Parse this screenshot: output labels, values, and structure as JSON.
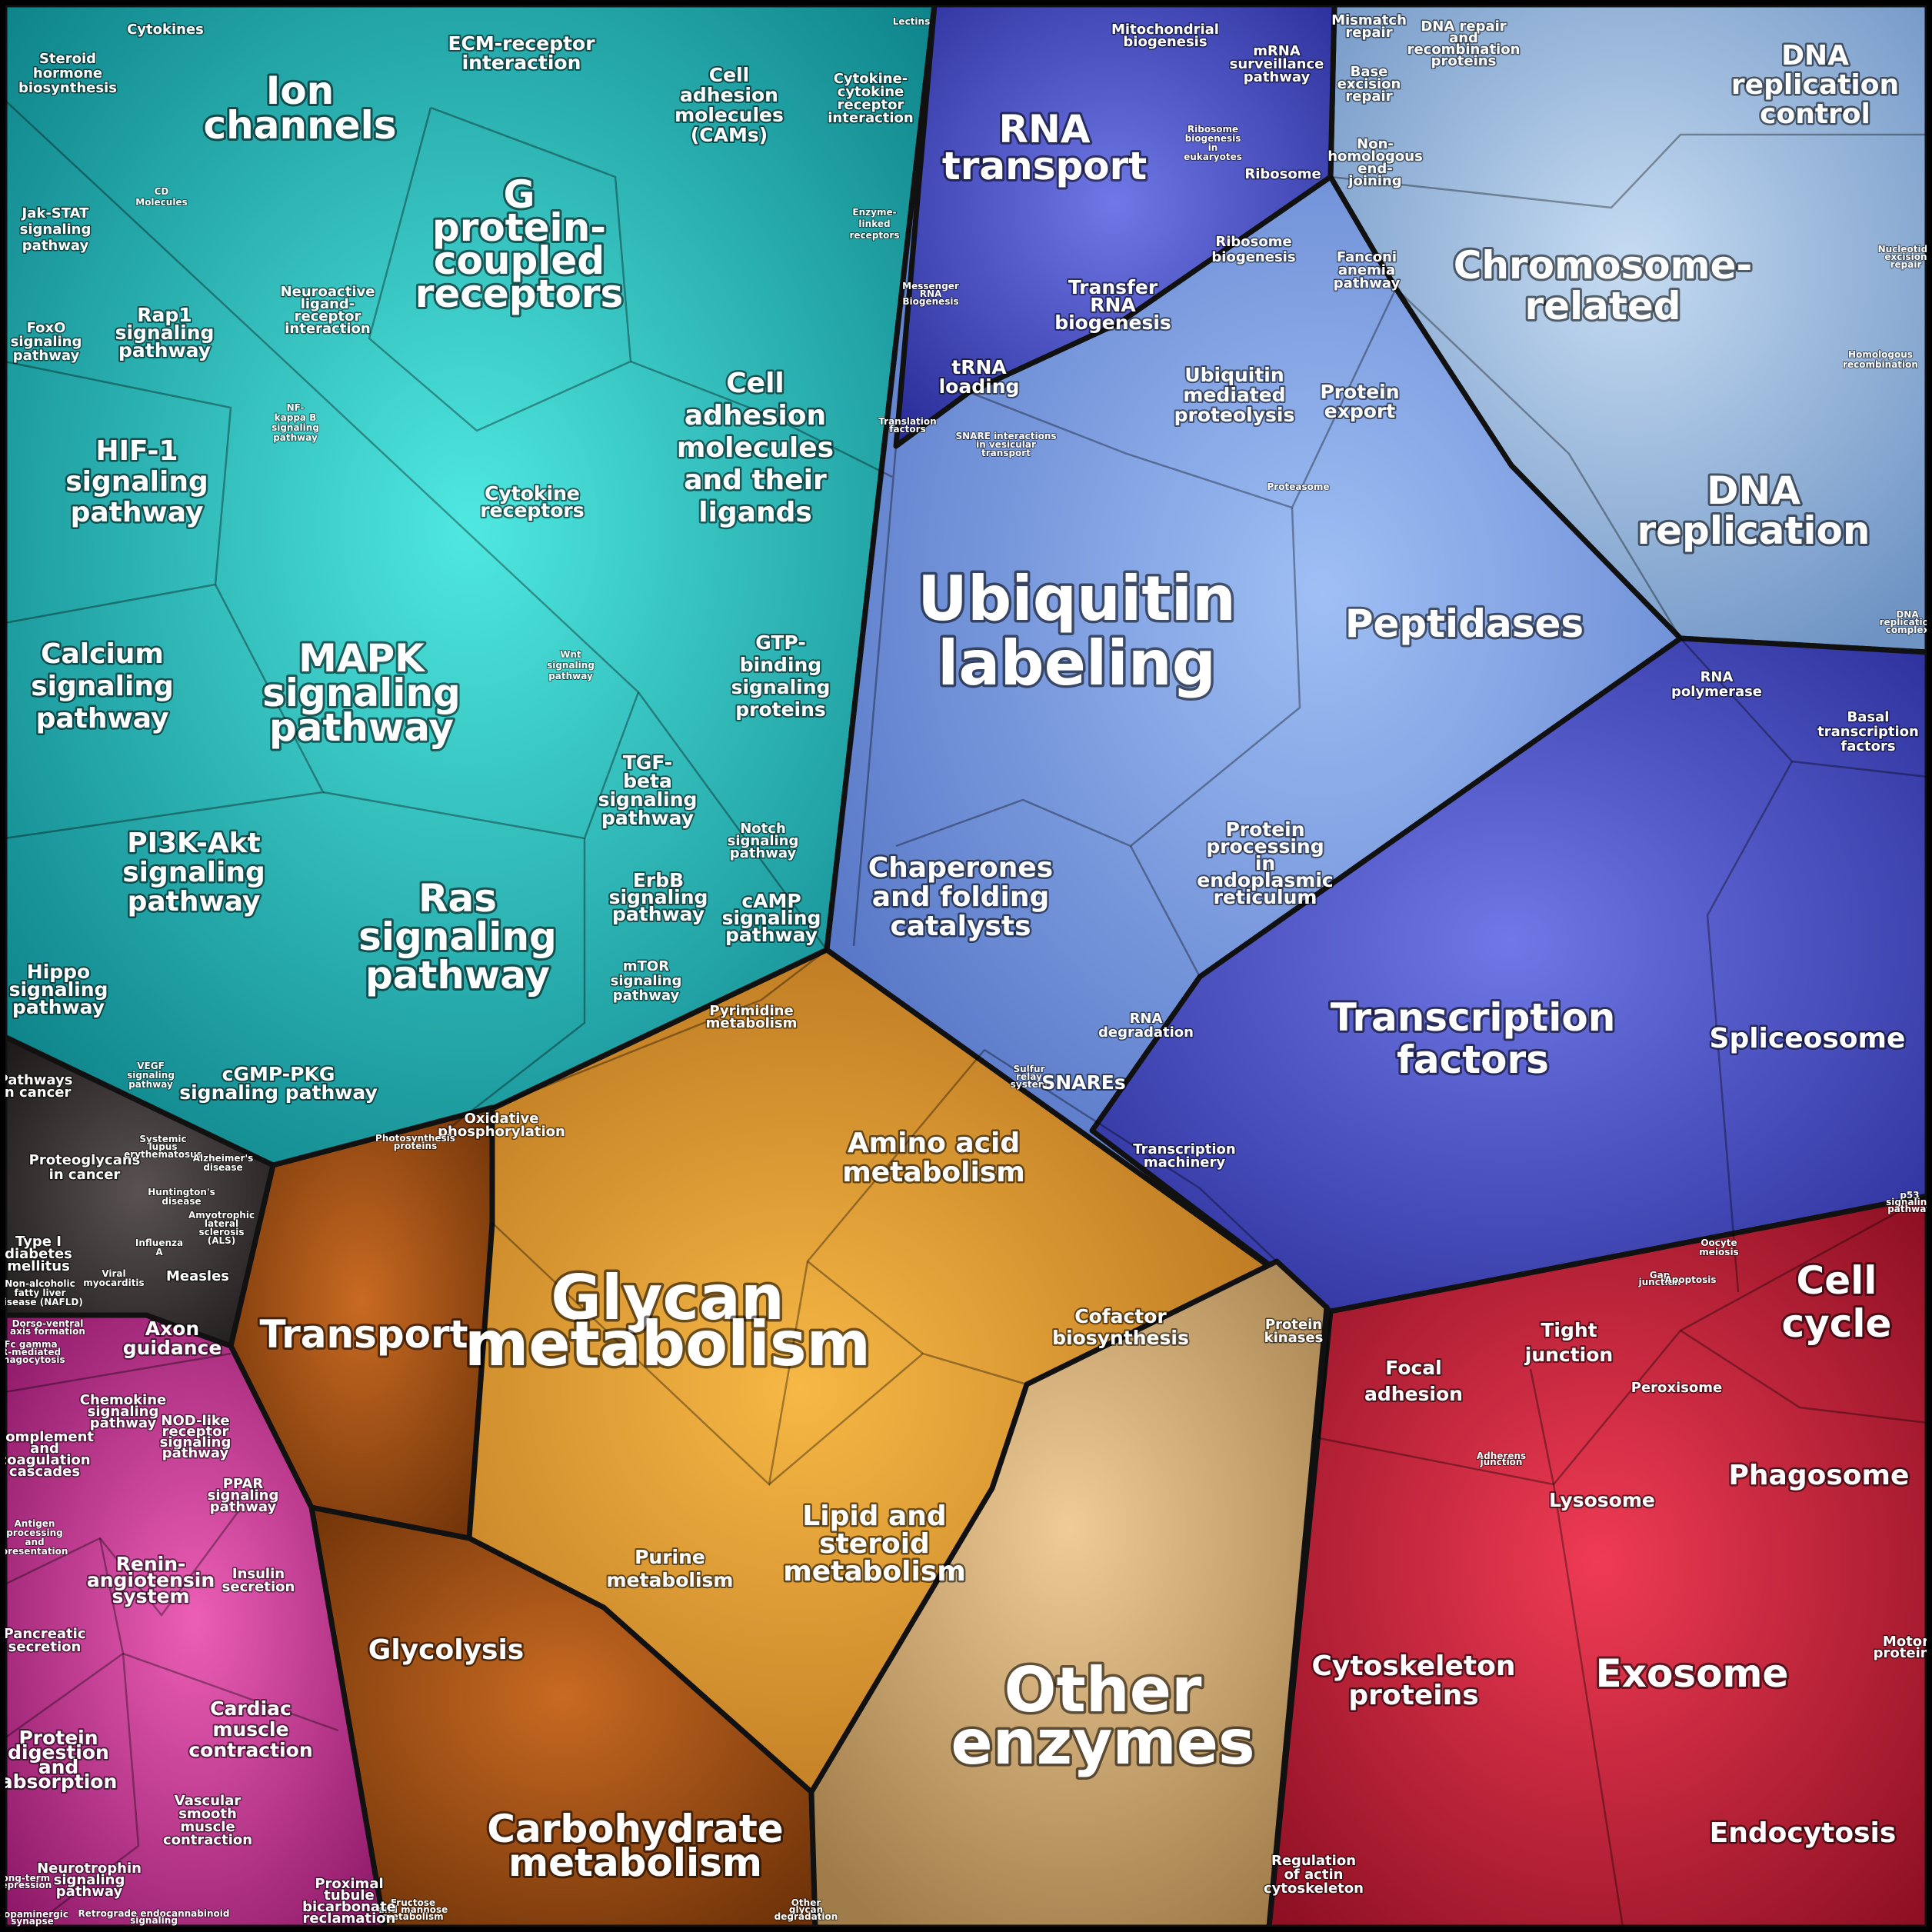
{
  "groups": {
    "signaling": "#1fb3b3",
    "genetic": "#6f8fe0",
    "metabolism": "#d98a2a",
    "cellular": "#c8283c",
    "disease": "#3a3434",
    "organismal": "#c0308f"
  },
  "labels": {
    "cytokines": [
      "Cytokines"
    ],
    "steroid": [
      "Steroid",
      "hormone",
      "biosynthesis"
    ],
    "ion": [
      "Ion",
      "channels"
    ],
    "ecm": [
      "ECM-receptor",
      "interaction"
    ],
    "cams": [
      "Cell",
      "adhesion",
      "molecules",
      "(CAMs)"
    ],
    "cyto_cyto": [
      "Cytokine-",
      "cytokine",
      "receptor",
      "interaction"
    ],
    "lectins": [
      "Lectins"
    ],
    "cd": [
      "CD",
      "Molecules"
    ],
    "jak": [
      "Jak-STAT",
      "signaling",
      "pathway"
    ],
    "gpcr": [
      "G",
      "protein-",
      "coupled",
      "receptors"
    ],
    "enzyme_linked": [
      "Enzyme-",
      "linked",
      "receptors"
    ],
    "neuroactive": [
      "Neuroactive",
      "ligand-",
      "receptor",
      "interaction"
    ],
    "rap1": [
      "Rap1",
      "signaling",
      "pathway"
    ],
    "foxo": [
      "FoxO",
      "signaling",
      "pathway"
    ],
    "nfkb": [
      "NF-",
      "kappa B",
      "signaling",
      "pathway"
    ],
    "cell_adhesion_lig": [
      "Cell",
      "adhesion",
      "molecules",
      "and their",
      "ligands"
    ],
    "hif1": [
      "HIF-1",
      "signaling",
      "pathway"
    ],
    "cytokine_rec": [
      "Cytokine",
      "receptors"
    ],
    "calcium": [
      "Calcium",
      "signaling",
      "pathway"
    ],
    "mapk": [
      "MAPK",
      "signaling",
      "pathway"
    ],
    "wnt": [
      "Wnt",
      "signaling",
      "pathway"
    ],
    "gtp": [
      "GTP-",
      "binding",
      "signaling",
      "proteins"
    ],
    "tgf": [
      "TGF-",
      "beta",
      "signaling",
      "pathway"
    ],
    "pi3k": [
      "PI3K-Akt",
      "signaling",
      "pathway"
    ],
    "notch": [
      "Notch",
      "signaling",
      "pathway"
    ],
    "ras": [
      "Ras",
      "signaling",
      "pathway"
    ],
    "erbb": [
      "ErbB",
      "signaling",
      "pathway"
    ],
    "camp": [
      "cAMP",
      "signaling",
      "pathway"
    ],
    "hippo": [
      "Hippo",
      "signaling",
      "pathway"
    ],
    "mtor": [
      "mTOR",
      "signaling",
      "pathway"
    ],
    "vegf": [
      "VEGF",
      "signaling",
      "pathway"
    ],
    "cgmp": [
      "cGMP-PKG",
      "signaling pathway"
    ],
    "pathways_cancer": [
      "Pathways",
      "in cancer"
    ],
    "proteoglycans": [
      "Proteoglycans",
      "in cancer"
    ],
    "sle": [
      "Systemic",
      "lupus",
      "erythematosus"
    ],
    "alzheimer": [
      "Alzheimer's",
      "disease"
    ],
    "huntington": [
      "Huntington's",
      "disease"
    ],
    "als": [
      "Amyotrophic",
      "lateral",
      "sclerosis",
      "(ALS)"
    ],
    "t1d": [
      "Type I",
      "diabetes",
      "mellitus"
    ],
    "influenza": [
      "Influenza",
      "A"
    ],
    "viral_myo": [
      "Viral",
      "myocarditis"
    ],
    "nafld": [
      "Non-alcoholic",
      "fatty liver",
      "disease (NAFLD)"
    ],
    "measles": [
      "Measles"
    ],
    "mito_bio": [
      "Mitochondrial",
      "biogenesis"
    ],
    "mrna_surv": [
      "mRNA",
      "surveillance",
      "pathway"
    ],
    "rna_transport": [
      "RNA",
      "transport"
    ],
    "ribo_bio_euk": [
      "Ribosome",
      "biogenesis",
      "in",
      "eukaryotes"
    ],
    "ribosome": [
      "Ribosome"
    ],
    "ribo_bio": [
      "Ribosome",
      "biogenesis"
    ],
    "messenger_rna": [
      "Messenger",
      "RNA",
      "Biogenesis"
    ],
    "transfer_rna": [
      "Transfer",
      "RNA",
      "biogenesis"
    ],
    "trna_loading": [
      "tRNA",
      "loading"
    ],
    "translation_factors": [
      "Translation",
      "factors"
    ],
    "snare_inter": [
      "SNARE interactions",
      "in vesicular",
      "transport"
    ],
    "ubi_mediated": [
      "Ubiquitin",
      "mediated",
      "proteolysis"
    ],
    "protein_export": [
      "Protein",
      "export"
    ],
    "proteasome": [
      "Proteasome"
    ],
    "ubiquitin_label": [
      "Ubiquitin",
      "labeling"
    ],
    "peptidases": [
      "Peptidases"
    ],
    "chaperones": [
      "Chaperones",
      "and folding",
      "catalysts"
    ],
    "protein_er": [
      "Protein",
      "processing",
      "in",
      "endoplasmic",
      "reticulum"
    ],
    "rna_degradation": [
      "RNA",
      "degradation"
    ],
    "sulfur_relay": [
      "Sulfur",
      "relay",
      "system"
    ],
    "snares": [
      "SNAREs"
    ],
    "mismatch": [
      "Mismatch",
      "repair"
    ],
    "dna_repair": [
      "DNA repair",
      "and",
      "recombination",
      "proteins"
    ],
    "dna_rep_ctrl": [
      "DNA",
      "replication",
      "control"
    ],
    "base_excision": [
      "Base",
      "excision",
      "repair"
    ],
    "nhej": [
      "Non-",
      "homologous",
      "end-",
      "joining"
    ],
    "chromosome": [
      "Chromosome-",
      "related"
    ],
    "fanconi": [
      "Fanconi",
      "anemia",
      "pathway"
    ],
    "nucleotide_exc": [
      "Nucleotide",
      "excision",
      "repair"
    ],
    "homologous": [
      "Homologous",
      "recombination"
    ],
    "dna_replication": [
      "DNA",
      "replication"
    ],
    "dna_rep_complex": [
      "DNA",
      "replication",
      "complex"
    ],
    "rna_polymerase": [
      "RNA",
      "polymerase"
    ],
    "basal_tf": [
      "Basal",
      "transcription",
      "factors"
    ],
    "transcription_factors": [
      "Transcription",
      "factors"
    ],
    "spliceosome": [
      "Spliceosome"
    ],
    "transcription_machinery": [
      "Transcription",
      "machinery"
    ],
    "pyrimidine": [
      "Pyrimidine",
      "metabolism"
    ],
    "oxphos": [
      "Oxidative",
      "phosphorylation"
    ],
    "photosynthesis": [
      "Photosynthesis",
      "proteins"
    ],
    "amino_acid": [
      "Amino acid",
      "metabolism"
    ],
    "transport": [
      "Transport"
    ],
    "glycan": [
      "Glycan",
      "metabolism"
    ],
    "cofactor": [
      "Cofactor",
      "biosynthesis"
    ],
    "protein_kinases": [
      "Protein",
      "kinases"
    ],
    "lipid": [
      "Lipid and",
      "steroid",
      "metabolism"
    ],
    "purine": [
      "Purine",
      "metabolism"
    ],
    "glycolysis": [
      "Glycolysis"
    ],
    "other_enzymes": [
      "Other",
      "enzymes"
    ],
    "carbohydrate": [
      "Carbohydrate",
      "metabolism"
    ],
    "fructose": [
      "Fructose",
      "and mannose",
      "metabolism"
    ],
    "other_glycan": [
      "Other",
      "glycan",
      "degradation"
    ],
    "axon": [
      "Axon",
      "guidance"
    ],
    "dorso": [
      "Dorso-ventral",
      "axis formation"
    ],
    "chemokine": [
      "Chemokine",
      "signaling",
      "pathway"
    ],
    "nod": [
      "NOD-like",
      "receptor",
      "signaling",
      "pathway"
    ],
    "complement": [
      "Complement",
      "and",
      "coagulation",
      "cascades"
    ],
    "fc_gamma": [
      "Fc gamma",
      "R-mediated",
      "phagocytosis"
    ],
    "ppar": [
      "PPAR",
      "signaling",
      "pathway"
    ],
    "antigen": [
      "Antigen",
      "processing",
      "and",
      "presentation"
    ],
    "renin": [
      "Renin-",
      "angiotensin",
      "system"
    ],
    "insulin": [
      "Insulin",
      "secretion"
    ],
    "pancreatic": [
      "Pancreatic",
      "secretion"
    ],
    "cardiac": [
      "Cardiac",
      "muscle",
      "contraction"
    ],
    "protein_digestion": [
      "Protein",
      "digestion",
      "and",
      "absorption"
    ],
    "vascular": [
      "Vascular",
      "smooth",
      "muscle",
      "contraction"
    ],
    "neurotrophin": [
      "Neurotrophin",
      "signaling",
      "pathway"
    ],
    "proximal": [
      "Proximal",
      "tubule",
      "bicarbonate",
      "reclamation"
    ],
    "long_term_dep": [
      "Long-term",
      "depression"
    ],
    "dopaminergic": [
      "Dopaminergic",
      "synapse"
    ],
    "retrograde": [
      "Retrograde endocannabinoid",
      "signaling"
    ],
    "p53": [
      "p53",
      "signaling",
      "pathway"
    ],
    "oocyte": [
      "Oocyte",
      "meiosis"
    ],
    "gap": [
      "Gap",
      "junction"
    ],
    "apoptosis": [
      "Apoptosis"
    ],
    "cell_cycle": [
      "Cell",
      "cycle"
    ],
    "focal": [
      "Focal",
      "adhesion"
    ],
    "tight": [
      "Tight",
      "junction"
    ],
    "peroxisome": [
      "Peroxisome"
    ],
    "phagosome": [
      "Phagosome"
    ],
    "lysosome": [
      "Lysosome"
    ],
    "adherens": [
      "Adherens",
      "junction"
    ],
    "cytoskeleton": [
      "Cytoskeleton",
      "proteins"
    ],
    "exosome": [
      "Exosome"
    ],
    "motor": [
      "Motor",
      "proteins"
    ],
    "regulation_actin": [
      "Regulation",
      "of actin",
      "cytoskeleton"
    ],
    "endocytosis": [
      "Endocytosis"
    ]
  }
}
